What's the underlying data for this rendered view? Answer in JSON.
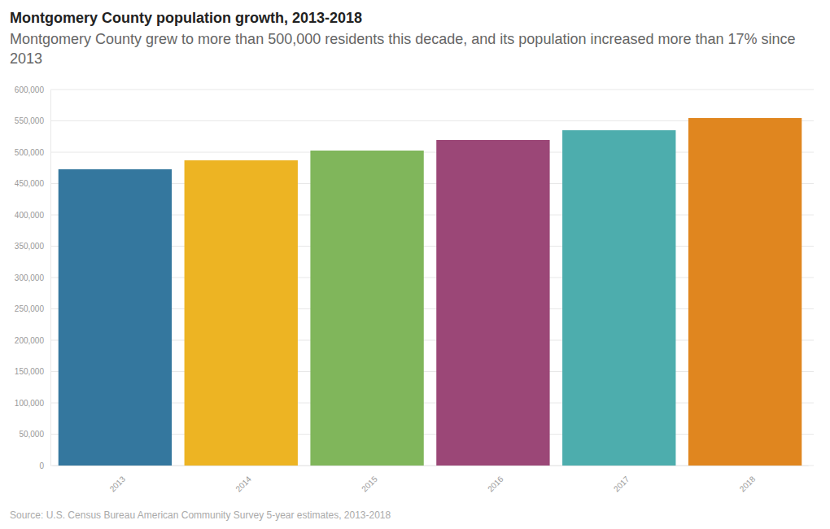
{
  "chart_data": {
    "type": "bar",
    "title": "Montgomery County population growth, 2013-2018",
    "subtitle": "Montgomery County grew to more than 500,000 residents this decade, and its population increased more than 17% since 2013",
    "source": "Source: U.S. Census Bureau American Community Survey 5-year estimates, 2013-2018",
    "categories": [
      "2013",
      "2014",
      "2015",
      "2016",
      "2017",
      "2018"
    ],
    "values": [
      472700,
      487000,
      502600,
      519500,
      535000,
      554500
    ],
    "colors": [
      "#34779e",
      "#edb423",
      "#80b65b",
      "#9b4777",
      "#4dadad",
      "#e0861f"
    ],
    "ylim": [
      0,
      600000
    ],
    "yticks": [
      0,
      {
        "value": 50000,
        "label": "50,000"
      },
      {
        "value": 100000,
        "label": "100,000"
      },
      {
        "value": 150000,
        "label": "150,000"
      },
      {
        "value": 200000,
        "label": "200,000"
      },
      {
        "value": 250000,
        "label": "250,000"
      },
      {
        "value": 300000,
        "label": "300,000"
      },
      {
        "value": 350000,
        "label": "350,000"
      },
      {
        "value": 400000,
        "label": "400,000"
      },
      {
        "value": 450000,
        "label": "450,000"
      },
      {
        "value": 500000,
        "label": "500,000"
      },
      {
        "value": 550000,
        "label": "550,000"
      },
      {
        "value": 600000,
        "label": "600,000"
      }
    ],
    "grid": true
  }
}
